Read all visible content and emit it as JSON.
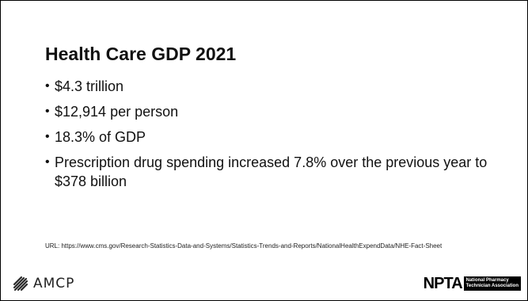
{
  "slide": {
    "title": "Health Care GDP 2021",
    "bullets": [
      "$4.3 trillion",
      "$12,914 per person",
      "18.3% of GDP",
      "Prescription drug spending increased 7.8% over the previous year to $378 billion"
    ],
    "url": "URL: https://www.cms.gov/Research-Statistics-Data-and-Systems/Statistics-Trends-and-Reports/NationalHealthExpendData/NHE-Fact-Sheet"
  },
  "logos": {
    "left": {
      "text": "AMCP"
    },
    "right": {
      "mark": "NPTA",
      "sub_line1": "National Pharmacy",
      "sub_line2": "Technician Association"
    }
  }
}
